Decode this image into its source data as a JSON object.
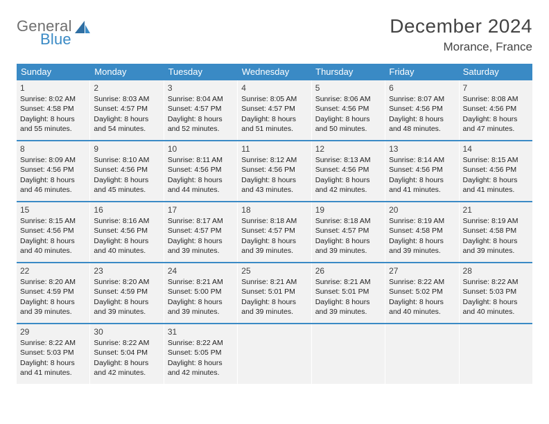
{
  "brand": {
    "line1": "General",
    "line2": "Blue"
  },
  "title": "December 2024",
  "location": "Morance, France",
  "colors": {
    "accent": "#3a8ac5",
    "cell_bg": "#f2f2f2",
    "text": "#222222",
    "title_text": "#444444",
    "header_text": "#ffffff"
  },
  "weekdays": [
    "Sunday",
    "Monday",
    "Tuesday",
    "Wednesday",
    "Thursday",
    "Friday",
    "Saturday"
  ],
  "weeks": [
    [
      {
        "n": "1",
        "rise": "Sunrise: 8:02 AM",
        "set": "Sunset: 4:58 PM",
        "d1": "Daylight: 8 hours",
        "d2": "and 55 minutes."
      },
      {
        "n": "2",
        "rise": "Sunrise: 8:03 AM",
        "set": "Sunset: 4:57 PM",
        "d1": "Daylight: 8 hours",
        "d2": "and 54 minutes."
      },
      {
        "n": "3",
        "rise": "Sunrise: 8:04 AM",
        "set": "Sunset: 4:57 PM",
        "d1": "Daylight: 8 hours",
        "d2": "and 52 minutes."
      },
      {
        "n": "4",
        "rise": "Sunrise: 8:05 AM",
        "set": "Sunset: 4:57 PM",
        "d1": "Daylight: 8 hours",
        "d2": "and 51 minutes."
      },
      {
        "n": "5",
        "rise": "Sunrise: 8:06 AM",
        "set": "Sunset: 4:56 PM",
        "d1": "Daylight: 8 hours",
        "d2": "and 50 minutes."
      },
      {
        "n": "6",
        "rise": "Sunrise: 8:07 AM",
        "set": "Sunset: 4:56 PM",
        "d1": "Daylight: 8 hours",
        "d2": "and 48 minutes."
      },
      {
        "n": "7",
        "rise": "Sunrise: 8:08 AM",
        "set": "Sunset: 4:56 PM",
        "d1": "Daylight: 8 hours",
        "d2": "and 47 minutes."
      }
    ],
    [
      {
        "n": "8",
        "rise": "Sunrise: 8:09 AM",
        "set": "Sunset: 4:56 PM",
        "d1": "Daylight: 8 hours",
        "d2": "and 46 minutes."
      },
      {
        "n": "9",
        "rise": "Sunrise: 8:10 AM",
        "set": "Sunset: 4:56 PM",
        "d1": "Daylight: 8 hours",
        "d2": "and 45 minutes."
      },
      {
        "n": "10",
        "rise": "Sunrise: 8:11 AM",
        "set": "Sunset: 4:56 PM",
        "d1": "Daylight: 8 hours",
        "d2": "and 44 minutes."
      },
      {
        "n": "11",
        "rise": "Sunrise: 8:12 AM",
        "set": "Sunset: 4:56 PM",
        "d1": "Daylight: 8 hours",
        "d2": "and 43 minutes."
      },
      {
        "n": "12",
        "rise": "Sunrise: 8:13 AM",
        "set": "Sunset: 4:56 PM",
        "d1": "Daylight: 8 hours",
        "d2": "and 42 minutes."
      },
      {
        "n": "13",
        "rise": "Sunrise: 8:14 AM",
        "set": "Sunset: 4:56 PM",
        "d1": "Daylight: 8 hours",
        "d2": "and 41 minutes."
      },
      {
        "n": "14",
        "rise": "Sunrise: 8:15 AM",
        "set": "Sunset: 4:56 PM",
        "d1": "Daylight: 8 hours",
        "d2": "and 41 minutes."
      }
    ],
    [
      {
        "n": "15",
        "rise": "Sunrise: 8:15 AM",
        "set": "Sunset: 4:56 PM",
        "d1": "Daylight: 8 hours",
        "d2": "and 40 minutes."
      },
      {
        "n": "16",
        "rise": "Sunrise: 8:16 AM",
        "set": "Sunset: 4:56 PM",
        "d1": "Daylight: 8 hours",
        "d2": "and 40 minutes."
      },
      {
        "n": "17",
        "rise": "Sunrise: 8:17 AM",
        "set": "Sunset: 4:57 PM",
        "d1": "Daylight: 8 hours",
        "d2": "and 39 minutes."
      },
      {
        "n": "18",
        "rise": "Sunrise: 8:18 AM",
        "set": "Sunset: 4:57 PM",
        "d1": "Daylight: 8 hours",
        "d2": "and 39 minutes."
      },
      {
        "n": "19",
        "rise": "Sunrise: 8:18 AM",
        "set": "Sunset: 4:57 PM",
        "d1": "Daylight: 8 hours",
        "d2": "and 39 minutes."
      },
      {
        "n": "20",
        "rise": "Sunrise: 8:19 AM",
        "set": "Sunset: 4:58 PM",
        "d1": "Daylight: 8 hours",
        "d2": "and 39 minutes."
      },
      {
        "n": "21",
        "rise": "Sunrise: 8:19 AM",
        "set": "Sunset: 4:58 PM",
        "d1": "Daylight: 8 hours",
        "d2": "and 39 minutes."
      }
    ],
    [
      {
        "n": "22",
        "rise": "Sunrise: 8:20 AM",
        "set": "Sunset: 4:59 PM",
        "d1": "Daylight: 8 hours",
        "d2": "and 39 minutes."
      },
      {
        "n": "23",
        "rise": "Sunrise: 8:20 AM",
        "set": "Sunset: 4:59 PM",
        "d1": "Daylight: 8 hours",
        "d2": "and 39 minutes."
      },
      {
        "n": "24",
        "rise": "Sunrise: 8:21 AM",
        "set": "Sunset: 5:00 PM",
        "d1": "Daylight: 8 hours",
        "d2": "and 39 minutes."
      },
      {
        "n": "25",
        "rise": "Sunrise: 8:21 AM",
        "set": "Sunset: 5:01 PM",
        "d1": "Daylight: 8 hours",
        "d2": "and 39 minutes."
      },
      {
        "n": "26",
        "rise": "Sunrise: 8:21 AM",
        "set": "Sunset: 5:01 PM",
        "d1": "Daylight: 8 hours",
        "d2": "and 39 minutes."
      },
      {
        "n": "27",
        "rise": "Sunrise: 8:22 AM",
        "set": "Sunset: 5:02 PM",
        "d1": "Daylight: 8 hours",
        "d2": "and 40 minutes."
      },
      {
        "n": "28",
        "rise": "Sunrise: 8:22 AM",
        "set": "Sunset: 5:03 PM",
        "d1": "Daylight: 8 hours",
        "d2": "and 40 minutes."
      }
    ],
    [
      {
        "n": "29",
        "rise": "Sunrise: 8:22 AM",
        "set": "Sunset: 5:03 PM",
        "d1": "Daylight: 8 hours",
        "d2": "and 41 minutes."
      },
      {
        "n": "30",
        "rise": "Sunrise: 8:22 AM",
        "set": "Sunset: 5:04 PM",
        "d1": "Daylight: 8 hours",
        "d2": "and 42 minutes."
      },
      {
        "n": "31",
        "rise": "Sunrise: 8:22 AM",
        "set": "Sunset: 5:05 PM",
        "d1": "Daylight: 8 hours",
        "d2": "and 42 minutes."
      },
      {
        "empty": true
      },
      {
        "empty": true
      },
      {
        "empty": true
      },
      {
        "empty": true
      }
    ]
  ]
}
